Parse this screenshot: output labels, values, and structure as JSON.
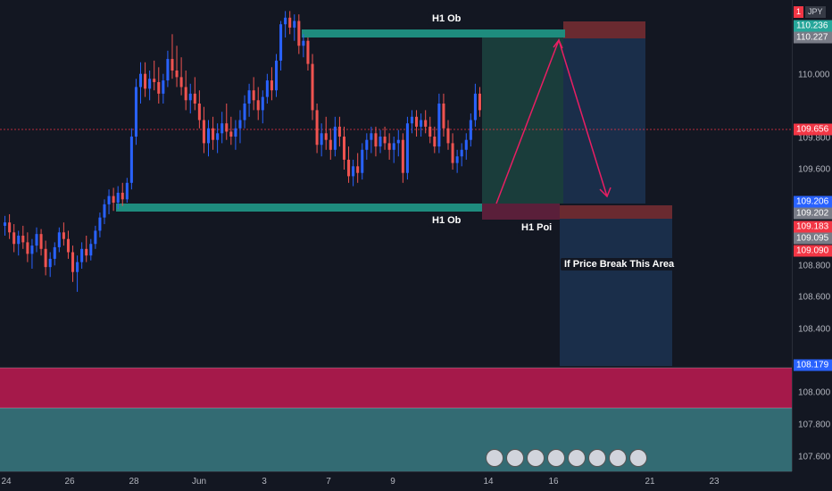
{
  "chart_data": {
    "type": "candlestick",
    "symbol_badge": {
      "number": "1",
      "currency": "JPY"
    },
    "price_ticks": [
      "110.000",
      "109.800",
      "109.600",
      "108.800",
      "108.600",
      "108.400",
      "108.000",
      "107.800",
      "107.600"
    ],
    "time_ticks": [
      "24",
      "26",
      "28",
      "Jun",
      "3",
      "7",
      "9",
      "14",
      "16",
      "21",
      "23"
    ],
    "price_tags": [
      {
        "text": "110.236",
        "color": "#26a69a"
      },
      {
        "text": "110.227",
        "color": "#787b86"
      },
      {
        "text": "109.656",
        "color": "#f23645"
      },
      {
        "text": "109.206",
        "color": "#2962ff"
      },
      {
        "text": "109.202",
        "color": "#787b86"
      },
      {
        "text": "109.183",
        "color": "#f23645"
      },
      {
        "text": "109.095",
        "color": "#787b86"
      },
      {
        "text": "109.090",
        "color": "#f23645"
      },
      {
        "text": "108.179",
        "color": "#2962ff"
      }
    ],
    "annotations": [
      {
        "label": "H1 Ob",
        "type": "zone",
        "price_top": 110.236,
        "price_bottom": 110.185,
        "color": "#1e8c7e"
      },
      {
        "label": "H1 Ob",
        "type": "zone",
        "price_top": 109.206,
        "price_bottom": 109.155,
        "color": "#1e8c7e"
      },
      {
        "label": "H1 Poi",
        "type": "zone",
        "price_top": 109.183,
        "price_bottom": 109.095,
        "color": "#801c3c"
      },
      {
        "label": "If Price Break This Area",
        "type": "zone",
        "price_top": 109.183,
        "price_bottom": 108.179,
        "color": "#1e3a5f"
      }
    ],
    "zones": {
      "upper_band": {
        "price_top": 108.179,
        "price_bottom": 107.925,
        "color": "#a5194a"
      },
      "lower_band": {
        "price_top": 107.925,
        "price_bottom": 107.5,
        "color": "#336b73"
      }
    },
    "candles": [
      [
        108.96,
        109.02,
        108.9,
        108.98
      ],
      [
        108.98,
        109.03,
        108.88,
        108.92
      ],
      [
        108.92,
        108.97,
        108.8,
        108.85
      ],
      [
        108.85,
        108.93,
        108.78,
        108.9
      ],
      [
        108.9,
        108.96,
        108.82,
        108.86
      ],
      [
        108.86,
        108.92,
        108.74,
        108.79
      ],
      [
        108.79,
        108.88,
        108.7,
        108.84
      ],
      [
        108.84,
        108.95,
        108.8,
        108.91
      ],
      [
        108.91,
        108.94,
        108.78,
        108.82
      ],
      [
        108.82,
        108.87,
        108.66,
        108.71
      ],
      [
        108.71,
        108.8,
        108.65,
        108.76
      ],
      [
        108.76,
        108.86,
        108.72,
        108.83
      ],
      [
        108.83,
        108.95,
        108.8,
        108.92
      ],
      [
        108.92,
        108.98,
        108.84,
        108.88
      ],
      [
        108.88,
        108.93,
        108.76,
        108.8
      ],
      [
        108.8,
        108.84,
        108.62,
        108.68
      ],
      [
        108.68,
        108.78,
        108.56,
        108.74
      ],
      [
        108.74,
        108.86,
        108.7,
        108.82
      ],
      [
        108.82,
        108.9,
        108.74,
        108.78
      ],
      [
        108.78,
        108.88,
        108.75,
        108.85
      ],
      [
        108.85,
        108.96,
        108.82,
        108.93
      ],
      [
        108.93,
        109.04,
        108.89,
        109.01
      ],
      [
        109.01,
        109.12,
        108.97,
        109.09
      ],
      [
        109.09,
        109.18,
        109.03,
        109.14
      ],
      [
        109.14,
        109.19,
        109.05,
        109.1
      ],
      [
        109.1,
        109.2,
        109.06,
        109.16
      ],
      [
        109.16,
        109.22,
        109.08,
        109.12
      ],
      [
        109.12,
        109.25,
        109.1,
        109.22
      ],
      [
        109.22,
        109.55,
        109.18,
        109.5
      ],
      [
        109.5,
        109.85,
        109.45,
        109.8
      ],
      [
        109.8,
        109.95,
        109.7,
        109.88
      ],
      [
        109.88,
        109.95,
        109.74,
        109.79
      ],
      [
        109.79,
        109.9,
        109.72,
        109.85
      ],
      [
        109.85,
        109.96,
        109.78,
        109.83
      ],
      [
        109.83,
        109.92,
        109.7,
        109.76
      ],
      [
        109.76,
        109.88,
        109.7,
        109.84
      ],
      [
        109.84,
        110.02,
        109.8,
        109.97
      ],
      [
        109.97,
        110.12,
        109.85,
        109.9
      ],
      [
        109.9,
        110.05,
        109.8,
        109.86
      ],
      [
        109.86,
        109.98,
        109.75,
        109.8
      ],
      [
        109.8,
        109.9,
        109.66,
        109.72
      ],
      [
        109.72,
        109.82,
        109.64,
        109.76
      ],
      [
        109.76,
        109.86,
        109.66,
        109.7
      ],
      [
        109.7,
        109.78,
        109.55,
        109.6
      ],
      [
        109.6,
        109.68,
        109.4,
        109.46
      ],
      [
        109.46,
        109.6,
        109.38,
        109.55
      ],
      [
        109.55,
        109.62,
        109.42,
        109.48
      ],
      [
        109.48,
        109.58,
        109.4,
        109.52
      ],
      [
        109.52,
        109.65,
        109.46,
        109.58
      ],
      [
        109.58,
        109.7,
        109.48,
        109.53
      ],
      [
        109.53,
        109.62,
        109.45,
        109.5
      ],
      [
        109.5,
        109.6,
        109.42,
        109.55
      ],
      [
        109.55,
        109.66,
        109.46,
        109.6
      ],
      [
        109.6,
        109.75,
        109.55,
        109.7
      ],
      [
        109.7,
        109.82,
        109.62,
        109.78
      ],
      [
        109.78,
        109.86,
        109.66,
        109.72
      ],
      [
        109.72,
        109.8,
        109.6,
        109.66
      ],
      [
        109.66,
        109.78,
        109.58,
        109.74
      ],
      [
        109.74,
        109.88,
        109.7,
        109.84
      ],
      [
        109.84,
        109.92,
        109.72,
        109.78
      ],
      [
        109.78,
        110.0,
        109.74,
        109.96
      ],
      [
        109.96,
        110.2,
        109.9,
        110.18
      ],
      [
        110.18,
        110.26,
        110.1,
        110.22
      ],
      [
        110.22,
        110.26,
        110.12,
        110.16
      ],
      [
        110.16,
        110.24,
        110.08,
        110.2
      ],
      [
        110.2,
        110.24,
        110.0,
        110.05
      ],
      [
        110.05,
        110.12,
        109.98,
        110.08
      ],
      [
        110.08,
        110.1,
        109.9,
        109.94
      ],
      [
        109.94,
        110.0,
        109.6,
        109.66
      ],
      [
        109.66,
        109.7,
        109.4,
        109.45
      ],
      [
        109.45,
        109.58,
        109.38,
        109.52
      ],
      [
        109.52,
        109.62,
        109.42,
        109.48
      ],
      [
        109.48,
        109.55,
        109.36,
        109.42
      ],
      [
        109.42,
        109.62,
        109.38,
        109.56
      ],
      [
        109.56,
        109.62,
        109.44,
        109.5
      ],
      [
        109.5,
        109.56,
        109.3,
        109.36
      ],
      [
        109.36,
        109.44,
        109.22,
        109.26
      ],
      [
        109.26,
        109.36,
        109.2,
        109.32
      ],
      [
        109.32,
        109.4,
        109.22,
        109.28
      ],
      [
        109.28,
        109.46,
        109.24,
        109.42
      ],
      [
        109.42,
        109.52,
        109.36,
        109.48
      ],
      [
        109.48,
        109.56,
        109.4,
        109.52
      ],
      [
        109.52,
        109.56,
        109.38,
        109.44
      ],
      [
        109.44,
        109.54,
        109.4,
        109.5
      ],
      [
        109.5,
        109.56,
        109.42,
        109.46
      ],
      [
        109.46,
        109.52,
        109.36,
        109.42
      ],
      [
        109.42,
        109.5,
        109.34,
        109.46
      ],
      [
        109.46,
        109.54,
        109.38,
        109.48
      ],
      [
        109.48,
        109.52,
        109.22,
        109.28
      ],
      [
        109.28,
        109.62,
        109.24,
        109.58
      ],
      [
        109.58,
        109.66,
        109.52,
        109.62
      ],
      [
        109.62,
        109.66,
        109.5,
        109.56
      ],
      [
        109.56,
        109.64,
        109.5,
        109.6
      ],
      [
        109.6,
        109.66,
        109.52,
        109.56
      ],
      [
        109.56,
        109.62,
        109.46,
        109.5
      ],
      [
        109.5,
        109.56,
        109.4,
        109.44
      ],
      [
        109.44,
        109.76,
        109.4,
        109.7
      ],
      [
        109.7,
        109.76,
        109.5,
        109.55
      ],
      [
        109.55,
        109.6,
        109.42,
        109.46
      ],
      [
        109.46,
        109.52,
        109.3,
        109.34
      ],
      [
        109.34,
        109.42,
        109.28,
        109.38
      ],
      [
        109.38,
        109.46,
        109.32,
        109.42
      ],
      [
        109.42,
        109.52,
        109.36,
        109.48
      ],
      [
        109.48,
        109.64,
        109.44,
        109.6
      ],
      [
        109.6,
        109.82,
        109.56,
        109.76
      ],
      [
        109.76,
        109.8,
        109.62,
        109.66
      ]
    ],
    "plan_arrow": [
      [
        109.09,
        0.0
      ],
      [
        110.22,
        0.5
      ],
      [
        109.24,
        1.0
      ]
    ]
  }
}
